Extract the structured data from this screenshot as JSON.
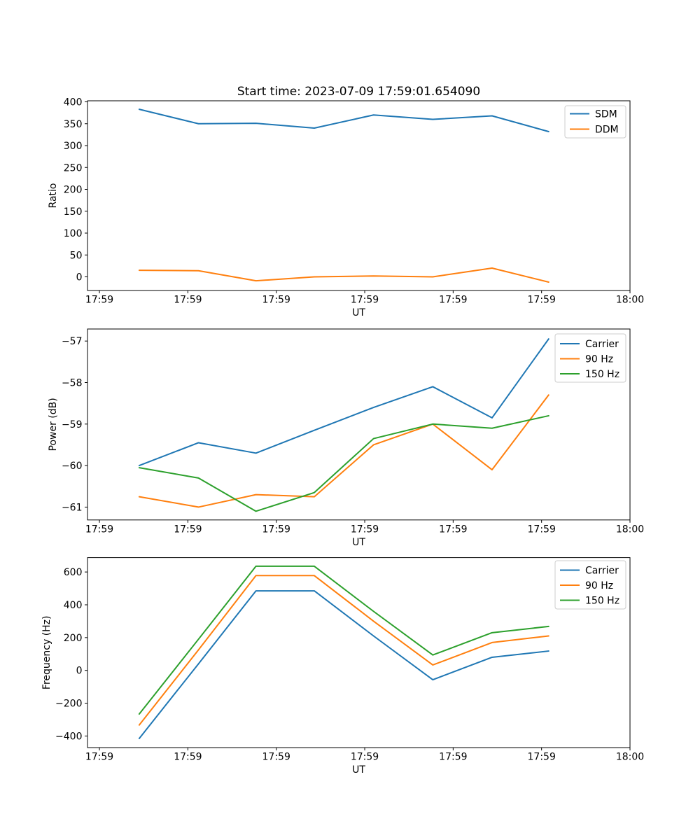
{
  "title": "Start time: 2023-07-09 17:59:01.654090",
  "colors": {
    "blue": "#1f77b4",
    "orange": "#ff7f0e",
    "green": "#2ca02c",
    "spine": "#000000",
    "legend_border": "#cccccc"
  },
  "chart_data": [
    {
      "type": "line",
      "panel": "ratio",
      "ylabel": "Ratio",
      "xlabel": "UT",
      "grid": false,
      "legend_position": "upper right",
      "x_values_seconds_after_17_59": [
        4.5,
        11.2,
        17.7,
        24.3,
        31.0,
        37.7,
        44.4,
        50.8
      ],
      "x_tick_values": [
        0,
        10,
        20,
        30,
        40,
        50,
        60
      ],
      "x_tick_labels": [
        "17:59",
        "17:59",
        "17:59",
        "17:59",
        "17:59",
        "17:59",
        "18:00"
      ],
      "xlim": [
        -1.35,
        60
      ],
      "ylim": [
        -31.2,
        402.4
      ],
      "y_ticks": [
        {
          "value": 0,
          "label": "0"
        },
        {
          "value": 50,
          "label": "50"
        },
        {
          "value": 100,
          "label": "100"
        },
        {
          "value": 150,
          "label": "150"
        },
        {
          "value": 200,
          "label": "200"
        },
        {
          "value": 250,
          "label": "250"
        },
        {
          "value": 300,
          "label": "300"
        },
        {
          "value": 350,
          "label": "350"
        },
        {
          "value": 400,
          "label": "400"
        }
      ],
      "series": [
        {
          "name": "SDM",
          "color": "#1f77b4",
          "values": [
            383,
            350,
            351,
            340,
            370,
            360,
            368,
            332
          ]
        },
        {
          "name": "DDM",
          "color": "#ff7f0e",
          "values": [
            15,
            14,
            -9,
            0,
            2,
            0,
            20,
            -12
          ]
        }
      ]
    },
    {
      "type": "line",
      "panel": "power",
      "ylabel": "Power (dB)",
      "xlabel": "UT",
      "grid": false,
      "legend_position": "upper right",
      "x_values_seconds_after_17_59": [
        4.5,
        11.2,
        17.7,
        24.3,
        31.0,
        37.7,
        44.4,
        50.8
      ],
      "x_tick_values": [
        0,
        10,
        20,
        30,
        40,
        50,
        60
      ],
      "x_tick_labels": [
        "17:59",
        "17:59",
        "17:59",
        "17:59",
        "17:59",
        "17:59",
        "18:00"
      ],
      "xlim": [
        -1.35,
        60
      ],
      "ylim": [
        -61.31,
        -56.71
      ],
      "y_ticks": [
        {
          "value": -57,
          "label": "−57"
        },
        {
          "value": -58,
          "label": "−58"
        },
        {
          "value": -59,
          "label": "−59"
        },
        {
          "value": -60,
          "label": "−60"
        },
        {
          "value": -61,
          "label": "−61"
        }
      ],
      "series": [
        {
          "name": "Carrier",
          "color": "#1f77b4",
          "values": [
            -60.0,
            -59.45,
            -59.7,
            -59.15,
            -58.6,
            -58.1,
            -58.85,
            -56.95
          ]
        },
        {
          "name": "90 Hz",
          "color": "#ff7f0e",
          "values": [
            -60.75,
            -61.0,
            -60.7,
            -60.75,
            -59.5,
            -59.0,
            -60.1,
            -58.3
          ]
        },
        {
          "name": "150 Hz",
          "color": "#2ca02c",
          "values": [
            -60.05,
            -60.3,
            -61.1,
            -60.65,
            -59.35,
            -59.0,
            -59.1,
            -58.8
          ]
        }
      ]
    },
    {
      "type": "line",
      "panel": "frequency",
      "ylabel": "Frequency (Hz)",
      "xlabel": "UT",
      "grid": false,
      "legend_position": "upper right",
      "x_values_seconds_after_17_59": [
        4.5,
        11.2,
        17.7,
        24.3,
        31.0,
        37.7,
        44.4,
        50.8
      ],
      "x_tick_values": [
        0,
        10,
        20,
        30,
        40,
        50,
        60
      ],
      "x_tick_labels": [
        "17:59",
        "17:59",
        "17:59",
        "17:59",
        "17:59",
        "17:59",
        "18:00"
      ],
      "xlim": [
        -1.35,
        60
      ],
      "ylim": [
        -470.7,
        687.6
      ],
      "y_ticks": [
        {
          "value": 600,
          "label": "600"
        },
        {
          "value": 400,
          "label": "400"
        },
        {
          "value": 200,
          "label": "200"
        },
        {
          "value": 0,
          "label": "0"
        },
        {
          "value": -200,
          "label": "−200"
        },
        {
          "value": -400,
          "label": "−400"
        }
      ],
      "series": [
        {
          "name": "Carrier",
          "color": "#1f77b4",
          "values": [
            -415,
            40,
            485,
            485,
            210,
            -57,
            80,
            118
          ]
        },
        {
          "name": "90 Hz",
          "color": "#ff7f0e",
          "values": [
            -333,
            125,
            578,
            578,
            300,
            33,
            170,
            210
          ]
        },
        {
          "name": "150 Hz",
          "color": "#2ca02c",
          "values": [
            -266,
            190,
            635,
            635,
            360,
            94,
            230,
            268
          ]
        }
      ]
    }
  ]
}
